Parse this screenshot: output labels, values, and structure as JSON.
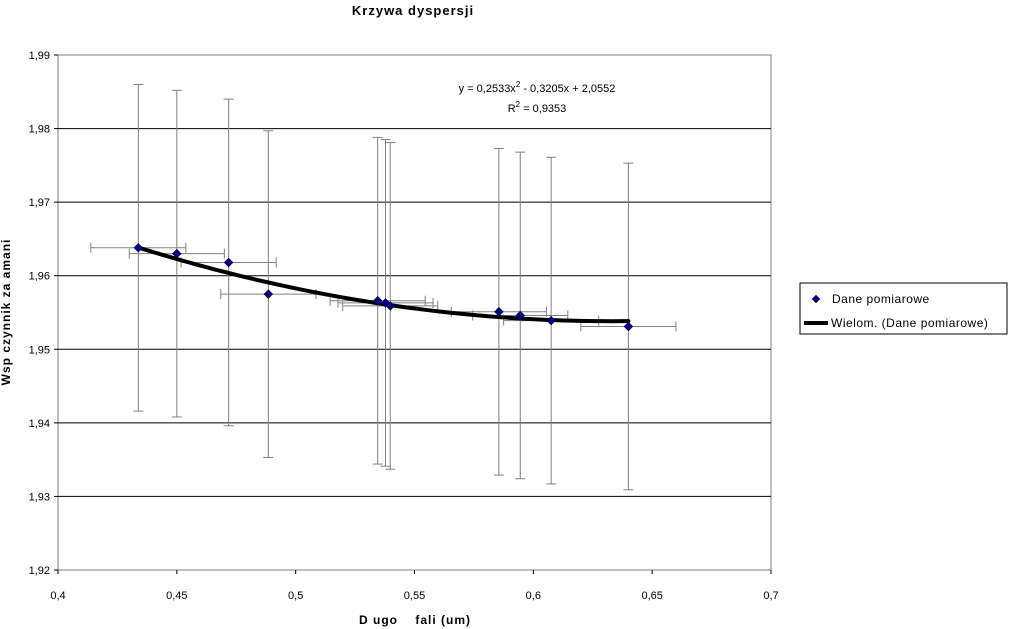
{
  "chart_data": {
    "type": "scatter",
    "title": "Krzywa dyspersji",
    "xlabel": "D ugo    fali (um)",
    "ylabel": "Wsp    czynnik za amani",
    "xlim": [
      0.4,
      0.7
    ],
    "ylim": [
      1.92,
      1.99
    ],
    "xticks": [
      "0,4",
      "0,45",
      "0,5",
      "0,55",
      "0,6",
      "0,65",
      "0,7"
    ],
    "yticks": [
      "1,92",
      "1,93",
      "1,94",
      "1,95",
      "1,96",
      "1,97",
      "1,98",
      "1,99"
    ],
    "grid": "horizontal",
    "legend_position": "right",
    "series": [
      {
        "name": "Dane pomiarowe",
        "marker": "diamond",
        "color": "#000080",
        "points": [
          {
            "x": 0.4338,
            "y": 1.9638,
            "xerr": 0.02,
            "yerr": 0.0222
          },
          {
            "x": 0.45,
            "y": 1.963,
            "xerr": 0.02,
            "yerr": 0.0222
          },
          {
            "x": 0.4718,
            "y": 1.9618,
            "xerr": 0.02,
            "yerr": 0.0222
          },
          {
            "x": 0.4885,
            "y": 1.9575,
            "xerr": 0.02,
            "yerr": 0.0222
          },
          {
            "x": 0.5345,
            "y": 1.9566,
            "xerr": 0.02,
            "yerr": 0.0222
          },
          {
            "x": 0.5378,
            "y": 1.9563,
            "xerr": 0.02,
            "yerr": 0.0222
          },
          {
            "x": 0.5398,
            "y": 1.9559,
            "xerr": 0.02,
            "yerr": 0.0222
          },
          {
            "x": 0.5855,
            "y": 1.9551,
            "xerr": 0.02,
            "yerr": 0.0222
          },
          {
            "x": 0.5945,
            "y": 1.9546,
            "xerr": 0.02,
            "yerr": 0.0222
          },
          {
            "x": 0.6075,
            "y": 1.9539,
            "xerr": 0.02,
            "yerr": 0.0222
          },
          {
            "x": 0.64,
            "y": 1.9531,
            "xerr": 0.02,
            "yerr": 0.0222
          }
        ]
      },
      {
        "name": "Wielom. (Dane pomiarowe)",
        "type": "trendline",
        "color": "#000000",
        "coefficients": [
          0.2533,
          -0.3205,
          2.0552
        ],
        "x_range": [
          0.4338,
          0.64
        ]
      }
    ],
    "annotation": {
      "equation_prefix": "y = 0,2533x",
      "equation_sup": "2",
      "equation_suffix": " - 0,3205x + 2,0552",
      "r2_prefix": "R",
      "r2_sup": "2",
      "r2_suffix": " = 0,9353"
    }
  }
}
